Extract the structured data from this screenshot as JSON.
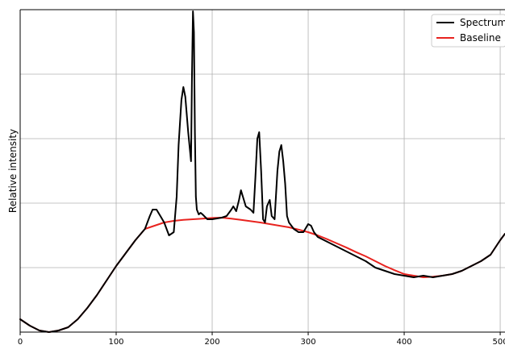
{
  "chart_data": {
    "type": "line",
    "xlabel": "",
    "ylabel": "Relative intensity",
    "xlim": [
      0,
      505
    ],
    "ylim": [
      0,
      1.0
    ],
    "x_ticks": [
      0,
      100,
      200,
      300,
      400,
      500
    ],
    "x_tick_labels": [
      "0",
      "100",
      "200",
      "300",
      "400",
      "500"
    ],
    "y_tick_labels": [],
    "grid": true,
    "legend_position": "top-right",
    "series": [
      {
        "name": "Spectrum",
        "color": "#000000",
        "x": [
          0,
          10,
          20,
          30,
          40,
          50,
          60,
          70,
          80,
          90,
          100,
          110,
          120,
          130,
          135,
          138,
          142,
          146,
          150,
          155,
          160,
          163,
          165,
          168,
          170,
          172,
          175,
          178,
          179,
          180,
          181,
          182,
          183,
          184,
          186,
          188,
          190,
          195,
          200,
          210,
          215,
          220,
          222,
          225,
          228,
          230,
          232,
          235,
          240,
          243,
          245,
          247,
          249,
          251,
          253,
          255,
          257,
          260,
          262,
          265,
          268,
          270,
          272,
          274,
          276,
          278,
          280,
          285,
          290,
          295,
          300,
          303,
          306,
          310,
          320,
          330,
          340,
          350,
          360,
          370,
          380,
          390,
          400,
          410,
          420,
          430,
          440,
          450,
          460,
          470,
          480,
          490,
          500,
          505
        ],
        "y": [
          0.04,
          0.02,
          0.005,
          0.0,
          0.005,
          0.015,
          0.04,
          0.075,
          0.115,
          0.16,
          0.205,
          0.245,
          0.285,
          0.32,
          0.36,
          0.38,
          0.38,
          0.36,
          0.34,
          0.3,
          0.31,
          0.42,
          0.58,
          0.72,
          0.76,
          0.73,
          0.62,
          0.53,
          0.8,
          0.995,
          0.93,
          0.62,
          0.42,
          0.38,
          0.365,
          0.37,
          0.365,
          0.35,
          0.35,
          0.355,
          0.36,
          0.38,
          0.39,
          0.375,
          0.41,
          0.44,
          0.42,
          0.39,
          0.38,
          0.37,
          0.48,
          0.6,
          0.62,
          0.5,
          0.35,
          0.34,
          0.39,
          0.41,
          0.36,
          0.35,
          0.5,
          0.56,
          0.58,
          0.53,
          0.46,
          0.36,
          0.34,
          0.32,
          0.31,
          0.31,
          0.335,
          0.33,
          0.31,
          0.295,
          0.28,
          0.265,
          0.25,
          0.235,
          0.22,
          0.2,
          0.19,
          0.18,
          0.175,
          0.17,
          0.175,
          0.17,
          0.175,
          0.18,
          0.19,
          0.205,
          0.22,
          0.24,
          0.285,
          0.305
        ]
      },
      {
        "name": "Baseline",
        "color": "#e8231f",
        "x": [
          0,
          10,
          20,
          30,
          40,
          50,
          60,
          70,
          80,
          90,
          100,
          110,
          120,
          130,
          140,
          150,
          160,
          170,
          180,
          190,
          200,
          210,
          220,
          230,
          240,
          250,
          260,
          270,
          280,
          290,
          300,
          310,
          320,
          330,
          340,
          350,
          360,
          370,
          380,
          390,
          400,
          410,
          420,
          430,
          440,
          450,
          460,
          470,
          480,
          490,
          500,
          505
        ],
        "y": [
          0.04,
          0.02,
          0.005,
          0.0,
          0.005,
          0.015,
          0.04,
          0.075,
          0.115,
          0.16,
          0.205,
          0.245,
          0.285,
          0.32,
          0.33,
          0.34,
          0.345,
          0.348,
          0.35,
          0.352,
          0.354,
          0.355,
          0.352,
          0.348,
          0.344,
          0.34,
          0.335,
          0.33,
          0.325,
          0.318,
          0.31,
          0.3,
          0.288,
          0.275,
          0.262,
          0.248,
          0.235,
          0.22,
          0.205,
          0.192,
          0.18,
          0.175,
          0.17,
          0.172,
          0.175,
          0.18,
          0.19,
          0.205,
          0.22,
          0.24,
          0.285,
          0.305
        ]
      }
    ]
  }
}
